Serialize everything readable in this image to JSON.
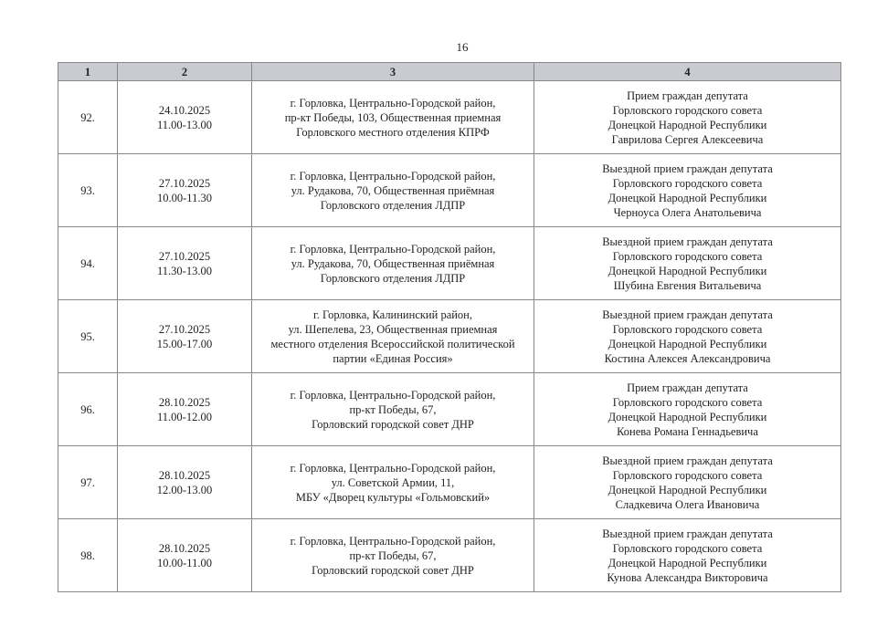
{
  "page_number": "16",
  "headers": [
    "1",
    "2",
    "3",
    "4"
  ],
  "rows": [
    {
      "num": "92.",
      "date": "24.10.2025",
      "time": "11.00-13.00",
      "place": [
        "г. Горловка, Центрально-Городской район,",
        "пр-кт Победы, 103, Общественная приемная",
        "Горловского местного отделения КПРФ"
      ],
      "event": [
        "Прием граждан депутата",
        "Горловского городского совета",
        "Донецкой Народной Республики",
        "Гаврилова Сергея Алексеевича"
      ]
    },
    {
      "num": "93.",
      "date": "27.10.2025",
      "time": "10.00-11.30",
      "place": [
        "г. Горловка, Центрально-Городской район,",
        "ул. Рудакова, 70, Общественная приёмная",
        "Горловского отделения ЛДПР"
      ],
      "event": [
        "Выездной прием граждан депутата",
        "Горловского городского совета",
        "Донецкой Народной Республики",
        "Черноуса Олега Анатольевича"
      ]
    },
    {
      "num": "94.",
      "date": "27.10.2025",
      "time": "11.30-13.00",
      "place": [
        "г. Горловка, Центрально-Городской район,",
        "ул. Рудакова, 70, Общественная приёмная",
        "Горловского отделения ЛДПР"
      ],
      "event": [
        "Выездной прием граждан депутата",
        "Горловского городского совета",
        "Донецкой Народной Республики",
        "Шубина Евгения Витальевича"
      ]
    },
    {
      "num": "95.",
      "date": "27.10.2025",
      "time": "15.00-17.00",
      "place": [
        "г. Горловка, Калининский район,",
        "ул. Шепелева, 23, Общественная приемная",
        "местного отделения Всероссийской политической",
        "партии «Единая Россия»"
      ],
      "event": [
        "Выездной прием граждан депутата",
        "Горловского городского совета",
        "Донецкой Народной Республики",
        "Костина Алексея Александровича"
      ]
    },
    {
      "num": "96.",
      "date": "28.10.2025",
      "time": "11.00-12.00",
      "place": [
        "г. Горловка, Центрально-Городской район,",
        "пр-кт Победы, 67,",
        "Горловский городской совет ДНР"
      ],
      "event": [
        "Прием граждан депутата",
        "Горловского городского совета",
        "Донецкой Народной Республики",
        "Конева Романа Геннадьевича"
      ]
    },
    {
      "num": "97.",
      "date": "28.10.2025",
      "time": "12.00-13.00",
      "place": [
        "г. Горловка, Центрально-Городской район,",
        "ул. Советской Армии, 11,",
        "МБУ «Дворец культуры «Гольмовский»"
      ],
      "event": [
        "Выездной прием граждан депутата",
        "Горловского городского совета",
        "Донецкой Народной Республики",
        "Сладкевича Олега Ивановича"
      ]
    },
    {
      "num": "98.",
      "date": "28.10.2025",
      "time": "10.00-11.00",
      "place": [
        "г. Горловка, Центрально-Городской район,",
        "пр-кт Победы, 67,",
        "Горловский городской совет ДНР"
      ],
      "event": [
        "Выездной прием граждан депутата",
        "Горловского городского совета",
        "Донецкой Народной Республики",
        "Кунова Александра Викторовича"
      ]
    }
  ]
}
